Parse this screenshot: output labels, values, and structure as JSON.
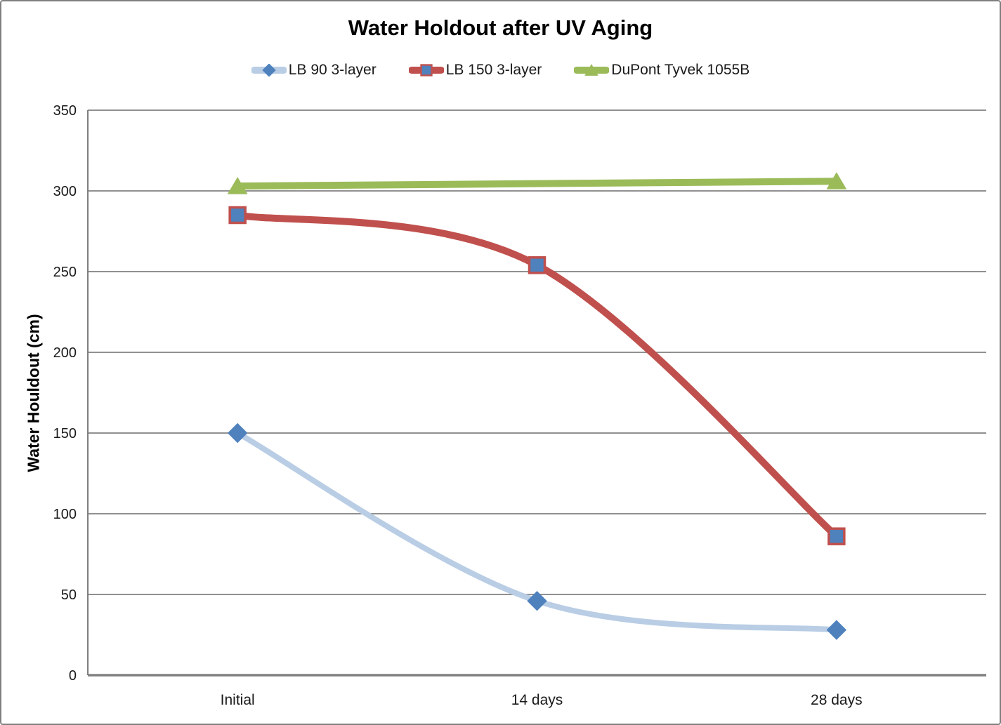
{
  "frame": {
    "background": "#ffffff",
    "border_color": "#7f7f7f"
  },
  "chart_data": {
    "type": "line",
    "title": "Water Holdout after UV Aging",
    "xlabel": "",
    "ylabel": "Water Houldout (cm)",
    "categories": [
      "Initial",
      "14 days",
      "28 days"
    ],
    "ylim": [
      0,
      350
    ],
    "yticks": [
      0,
      50,
      100,
      150,
      200,
      250,
      300,
      350
    ],
    "grid": true,
    "legend_position": "top",
    "axis_color": "#808080",
    "grid_color": "#808080",
    "tick_text_color": "#1a1a1a",
    "series": [
      {
        "name": "LB 90 3-layer",
        "values": [
          150,
          46,
          28
        ],
        "line_color": "#B9CDE5",
        "line_width": 8,
        "smooth": true,
        "marker": "diamond",
        "marker_color": "#4F81BD",
        "marker_border": "#4F81BD"
      },
      {
        "name": "LB 150 3-layer",
        "values": [
          285,
          254,
          86
        ],
        "line_color": "#C0504D",
        "line_width": 10,
        "smooth": true,
        "marker": "square",
        "marker_color": "#4F81BD",
        "marker_border": "#C0504D"
      },
      {
        "name": "DuPont Tyvek 1055B",
        "values": [
          303,
          null,
          306
        ],
        "line_color": "#9BBB59",
        "line_width": 10,
        "smooth": false,
        "marker": "triangle",
        "marker_color": "#9BBB59",
        "marker_border": "#9BBB59"
      }
    ]
  }
}
